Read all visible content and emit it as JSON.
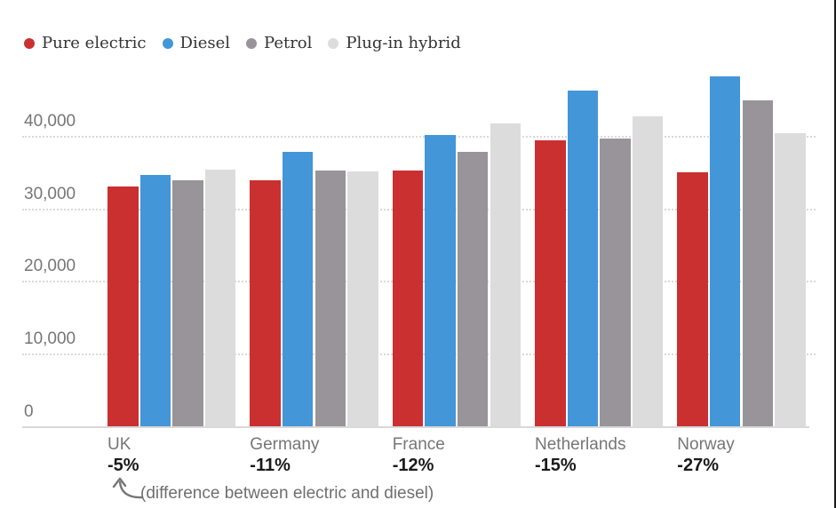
{
  "chart_data": {
    "type": "bar",
    "categories": [
      "UK",
      "Germany",
      "France",
      "Netherlands",
      "Norway"
    ],
    "category_notes": [
      "-5%",
      "-11%",
      "-12%",
      "-15%",
      "-27%"
    ],
    "series": [
      {
        "name": "Pure electric",
        "color": "#cb3030",
        "values": [
          33000,
          33800,
          35200,
          39300,
          35000
        ]
      },
      {
        "name": "Diesel",
        "color": "#4396d8",
        "values": [
          34600,
          37800,
          40100,
          46200,
          48200
        ]
      },
      {
        "name": "Petrol",
        "color": "#98949a",
        "values": [
          33800,
          35200,
          37800,
          39600,
          44800
        ]
      },
      {
        "name": "Plug-in hybrid",
        "color": "#dcdcdc",
        "values": [
          35300,
          35100,
          41700,
          42700,
          40300
        ]
      }
    ],
    "xlabel": "",
    "ylabel": "",
    "ylim": [
      0,
      48500
    ],
    "yticks": [
      0,
      10000,
      20000,
      30000,
      40000
    ],
    "ytick_labels": [
      "0",
      "10,000",
      "20,000",
      "30,000",
      "40,000"
    ],
    "grid": "horizontal-dotted",
    "legend_position": "top-left",
    "annotation": "(difference between electric and diesel)"
  }
}
